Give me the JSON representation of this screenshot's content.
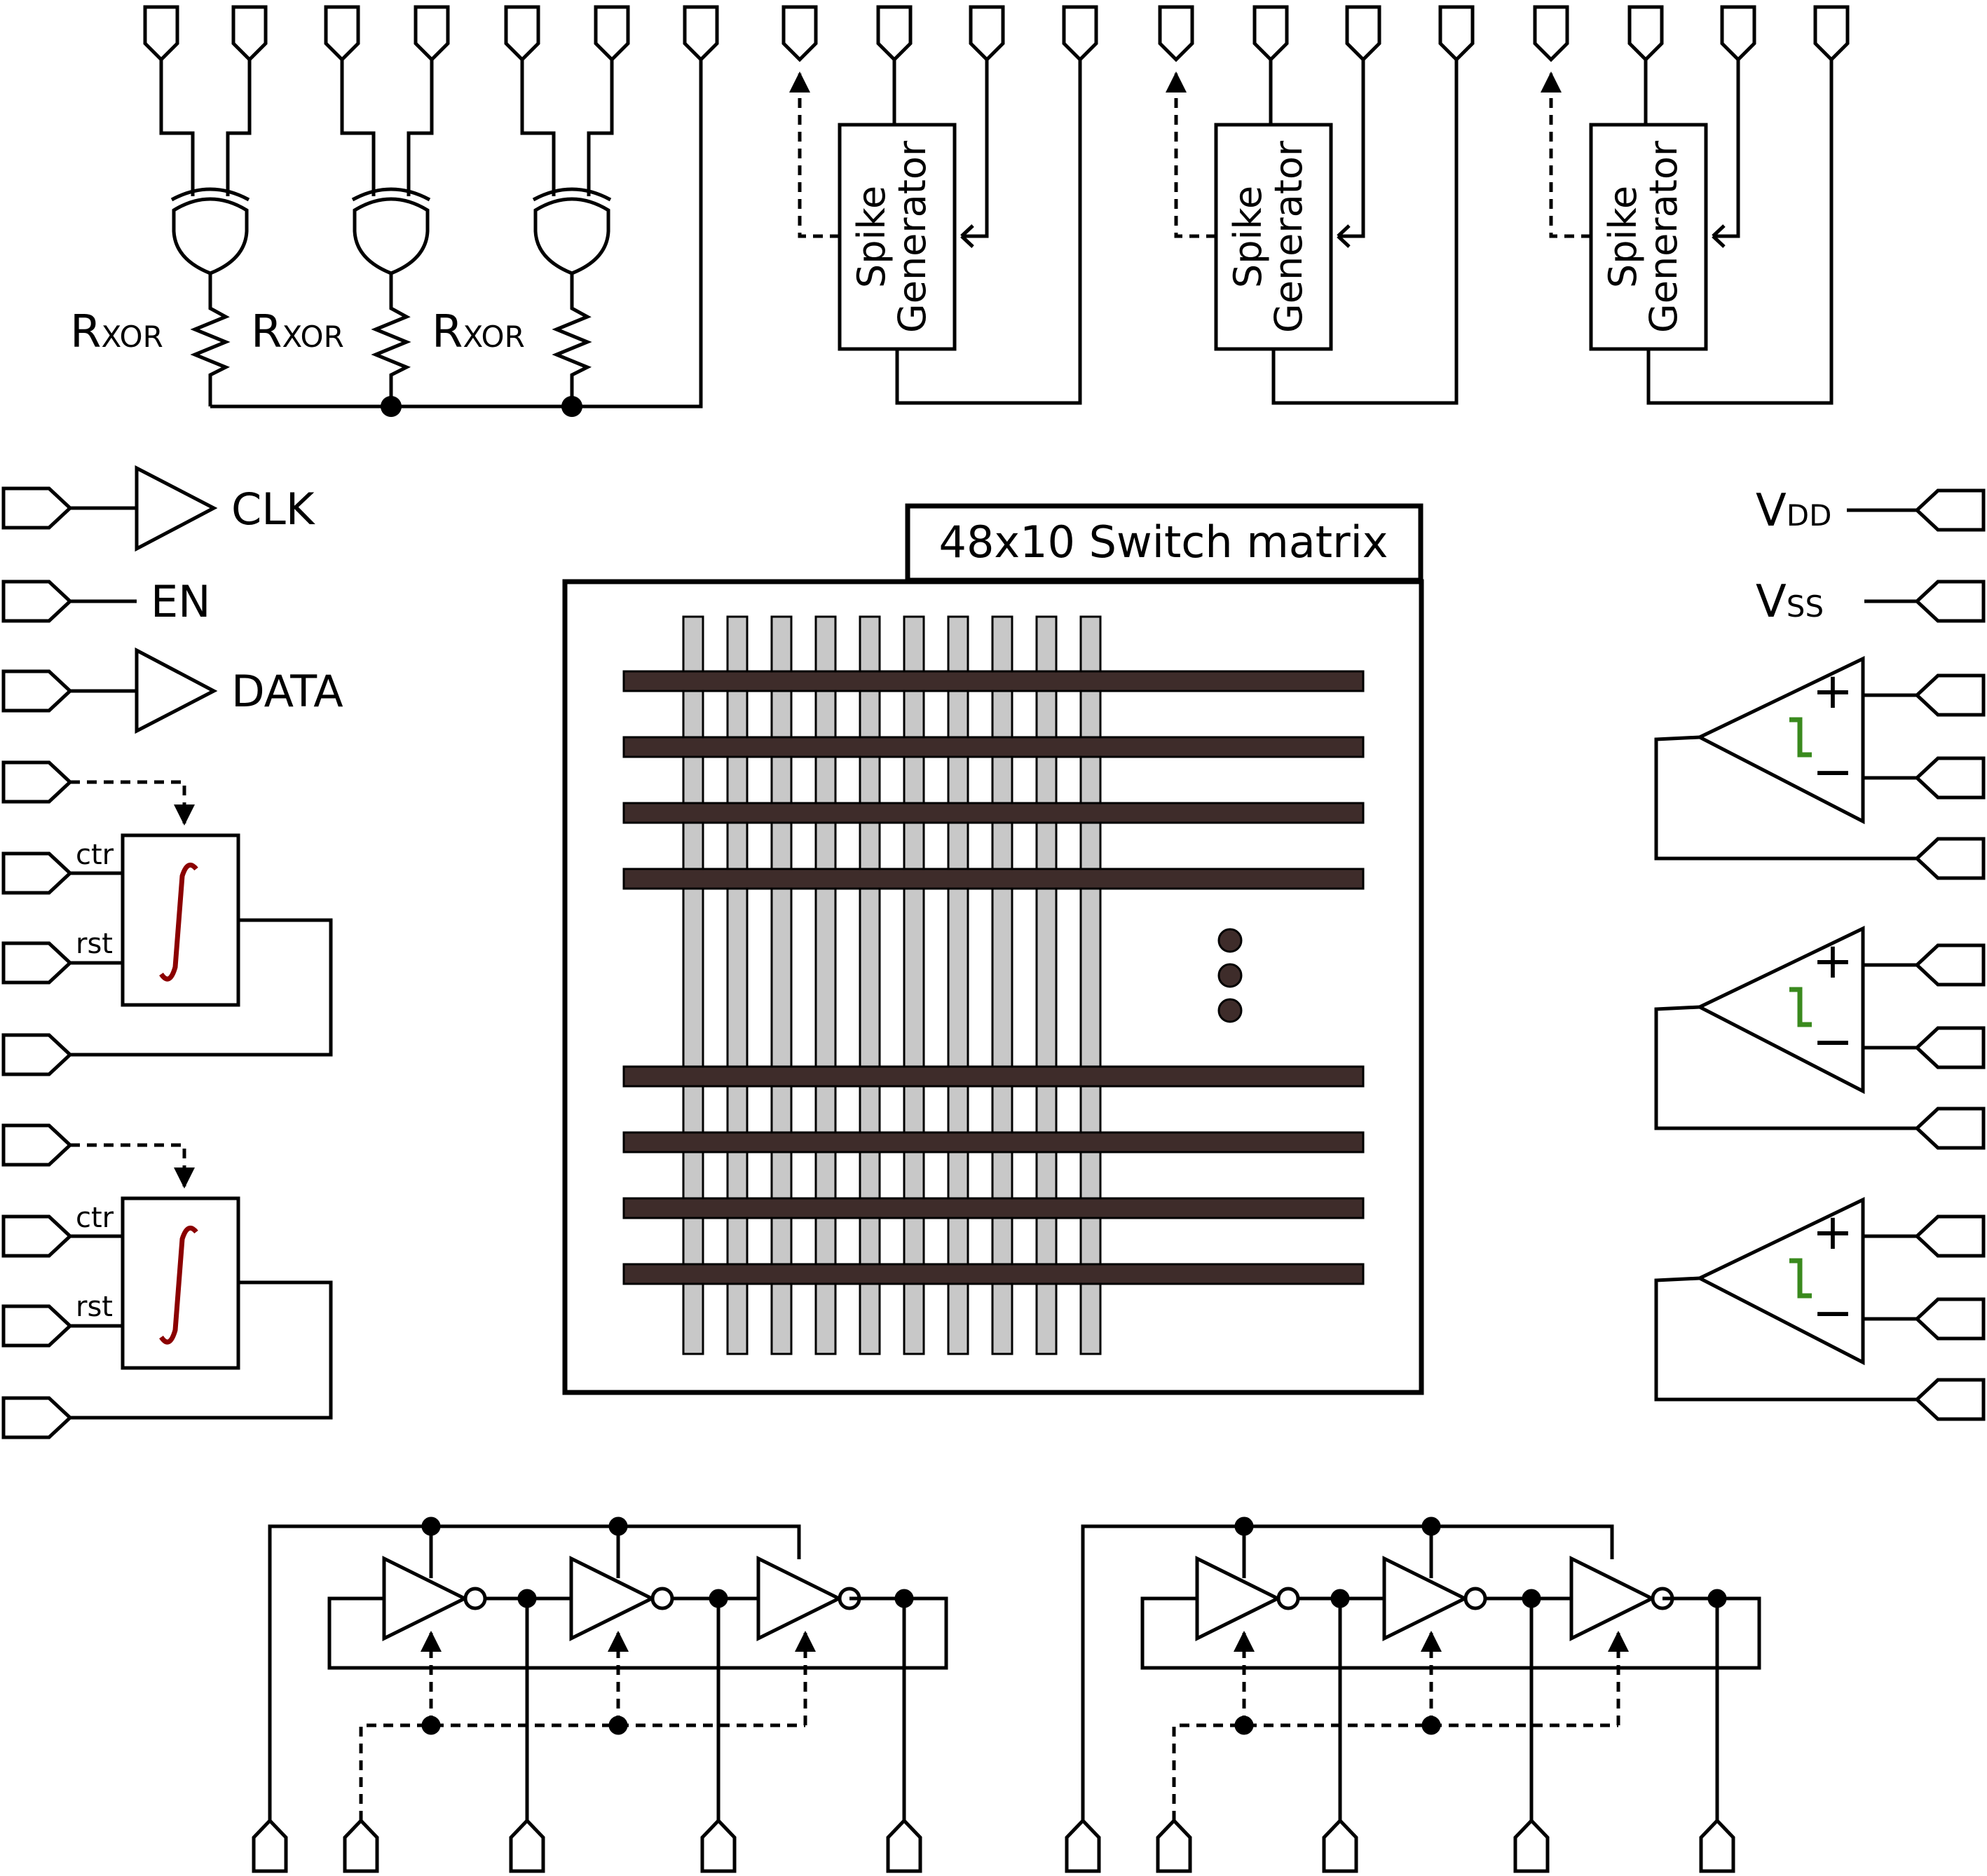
{
  "switch_matrix": {
    "title": "48x10 Switch matrix"
  },
  "xor_resistors": {
    "label_main": "R",
    "label_sub": "XOR"
  },
  "spike_generator": {
    "line1": "Spike",
    "line2": "Generator"
  },
  "left_inputs": {
    "clk": "CLK",
    "en": "EN",
    "data": "DATA"
  },
  "integrator": {
    "ctr_label": "ctr",
    "rst_label": "rst",
    "symbol": "∫"
  },
  "supplies": {
    "vdd_main": "V",
    "vdd_sub": "DD",
    "vss_main": "V",
    "vss_sub": "SS"
  },
  "comparator": {
    "plus": "+",
    "minus": "−"
  },
  "colors": {
    "wire": "#000000",
    "bus_row": "#3e2c2a",
    "bus_column": "#c8c8c8",
    "integral_symbol": "#8b0000",
    "hysteresis_symbol": "#3a8a1e"
  }
}
